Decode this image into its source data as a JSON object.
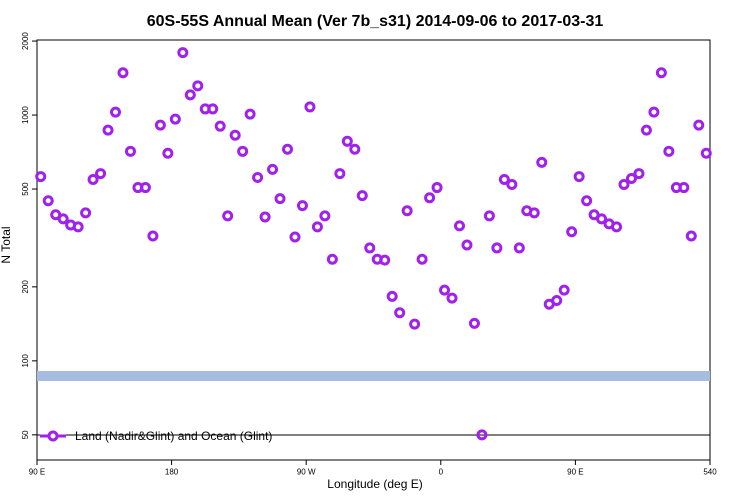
{
  "chart_data": {
    "type": "scatter",
    "title": "60S-55S Annual Mean (Ver 7b_s31)   2014-09-06 to 2017-03-31",
    "x_label": "Longitude (deg E)",
    "y_label": "N Total",
    "log_y": true,
    "xlim": [
      90,
      540
    ],
    "ylim": [
      39.5,
      2020
    ],
    "xticks": [
      {
        "value": 90,
        "label": "90 E"
      },
      180,
      {
        "value": 270,
        "label": "90 W"
      },
      {
        "value": 360,
        "label": "0"
      },
      {
        "value": 450,
        "label": "90 E"
      },
      540
    ],
    "yticks": [
      50,
      100,
      200,
      500,
      1000,
      2000
    ],
    "legend": "bottom-left",
    "series": [
      {
        "name": "Land (Nadir&Glint) and Ocean (Glint)",
        "color": "#a020f0",
        "x": [
          92.5,
          97.5,
          102.5,
          107.5,
          112.5,
          117.5,
          122.5,
          127.5,
          132.5,
          137.5,
          142.5,
          147.5,
          152.5,
          157.5,
          162.5,
          167.5,
          172.5,
          177.5,
          182.5,
          187.5,
          192.5,
          197.5,
          202.5,
          207.5,
          212.5,
          217.5,
          222.5,
          227.5,
          232.5,
          237.5,
          242.5,
          247.5,
          252.5,
          257.5,
          262.5,
          267.5,
          272.5,
          277.5,
          282.5,
          287.5,
          292.5,
          297.5,
          302.5,
          307.5,
          312.5,
          317.5,
          322.5,
          327.5,
          332.5,
          337.5,
          342.5,
          347.5,
          352.5,
          357.5,
          362.5,
          367.5,
          372.5,
          377.5,
          382.5,
          387.5,
          392.5,
          397.5,
          402.5,
          407.5,
          412.5,
          417.5,
          422.5,
          427.5,
          432.5,
          437.5,
          442.5,
          447.5,
          452.5,
          457.5,
          462.5,
          467.5,
          472.5,
          477.5,
          482.5,
          487.5,
          492.5,
          497.5,
          502.5,
          507.5,
          512.5,
          517.5,
          522.5,
          527.5,
          532.5,
          537.5
        ],
        "values": [
          562,
          448,
          393,
          378,
          357,
          351,
          400,
          547,
          578,
          868,
          1028,
          1486,
          712,
          507,
          507,
          322,
          910,
          699,
          963,
          1795,
          1208,
          1315,
          1059,
          1059,
          901,
          389,
          828,
          712,
          1009,
          557,
          385,
          601,
          457,
          726,
          319,
          428,
          1079,
          351,
          389,
          259,
          578,
          782,
          726,
          470,
          288,
          259,
          257,
          183,
          157,
          408,
          141,
          259,
          461,
          507,
          194,
          180,
          354,
          296,
          142,
          50,
          389,
          288,
          547,
          522,
          288,
          408,
          400,
          642,
          170,
          176,
          194,
          335,
          562,
          448,
          393,
          378,
          361,
          351,
          522,
          552,
          578,
          868,
          1028,
          1486,
          712,
          507,
          507,
          322,
          910,
          699
        ]
      }
    ]
  }
}
